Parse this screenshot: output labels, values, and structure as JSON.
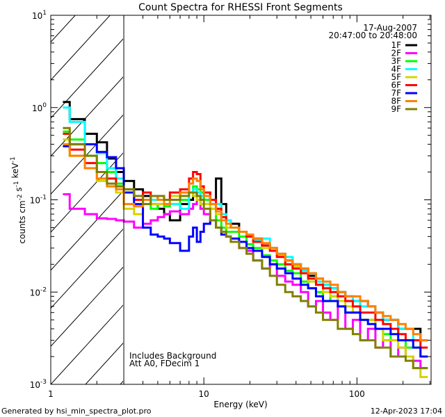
{
  "chart_data": {
    "type": "line",
    "title": "Count Spectra for RHESSI Front Segments",
    "xlabel": "Energy (keV)",
    "ylabel": {
      "text": "counts cm",
      "parts": [
        [
          "counts cm",
          "-2"
        ],
        [
          " s",
          "-1"
        ],
        [
          " keV",
          "-1"
        ]
      ]
    },
    "xscale": "log",
    "yscale": "log",
    "xlim": [
      1,
      305
    ],
    "ylim": [
      0.001,
      10
    ],
    "x_ticks": [
      {
        "value": 1,
        "label": "1"
      },
      {
        "value": 10,
        "label": "10"
      },
      {
        "value": 100,
        "label": "100"
      }
    ],
    "y_ticks": [
      {
        "value": 0.001,
        "base": "10",
        "exp": "-3"
      },
      {
        "value": 0.01,
        "base": "10",
        "exp": "-2"
      },
      {
        "value": 0.1,
        "base": "10",
        "exp": "-1"
      },
      {
        "value": 1,
        "base": "10",
        "exp": "0"
      },
      {
        "value": 10,
        "base": "10",
        "exp": "1"
      }
    ],
    "hatched_region_keV": [
      1,
      3
    ],
    "annotations": [
      "Includes Background",
      "Att A0, FDecim 1"
    ],
    "legend": {
      "placement": "top-right",
      "date": "17-Aug-2007",
      "time_range": "20:47:00 to 20:48:00"
    },
    "energy_edges_keV": [
      1.2,
      1.33,
      1.67,
      2,
      2.33,
      2.67,
      3,
      3.5,
      4,
      4.5,
      5,
      5.5,
      6,
      7,
      8,
      8.5,
      9,
      9.5,
      10,
      11,
      12,
      13,
      14,
      15,
      17,
      19,
      21,
      24,
      27,
      30,
      34,
      38,
      43,
      48,
      54,
      60,
      67,
      75,
      84,
      94,
      105,
      118,
      132,
      148,
      166,
      186,
      208,
      233,
      260,
      290
    ],
    "series": [
      {
        "name": "1F",
        "color": "#000000",
        "values": [
          1.15,
          0.75,
          0.52,
          0.42,
          0.28,
          0.2,
          0.16,
          0.13,
          0.11,
          0.09,
          0.08,
          0.07,
          0.06,
          0.09,
          0.1,
          0.12,
          0.11,
          0.1,
          0.12,
          0.1,
          0.17,
          0.09,
          0.06,
          0.055,
          0.045,
          0.04,
          0.038,
          0.032,
          0.03,
          0.026,
          0.022,
          0.02,
          0.018,
          0.015,
          0.014,
          0.012,
          0.011,
          0.01,
          0.009,
          0.008,
          0.008,
          0.007,
          0.006,
          0.005,
          0.005,
          0.004,
          0.004,
          0.004,
          0.003
        ]
      },
      {
        "name": "2F",
        "color": "#ff00ff",
        "values": [
          0.115,
          0.08,
          0.07,
          0.063,
          0.062,
          0.06,
          0.058,
          0.05,
          0.055,
          0.06,
          0.065,
          0.07,
          0.075,
          0.07,
          0.08,
          0.09,
          0.1,
          0.08,
          0.07,
          0.06,
          0.05,
          0.045,
          0.04,
          0.035,
          0.03,
          0.028,
          0.022,
          0.018,
          0.02,
          0.015,
          0.013,
          0.012,
          0.01,
          0.007,
          0.008,
          0.006,
          0.005,
          0.007,
          0.004,
          0.005,
          0.003,
          0.004,
          0.0025,
          0.003,
          0.002,
          0.0025,
          0.002,
          0.0018,
          0.0015
        ]
      },
      {
        "name": "3F",
        "color": "#00ff00",
        "values": [
          0.55,
          0.45,
          0.3,
          0.25,
          0.2,
          0.15,
          0.12,
          0.11,
          0.1,
          0.08,
          0.09,
          0.085,
          0.09,
          0.1,
          0.12,
          0.14,
          0.13,
          0.12,
          0.1,
          0.08,
          0.06,
          0.05,
          0.045,
          0.045,
          0.04,
          0.033,
          0.03,
          0.025,
          0.022,
          0.02,
          0.017,
          0.016,
          0.013,
          0.011,
          0.01,
          0.008,
          0.009,
          0.007,
          0.006,
          0.006,
          0.005,
          0.005,
          0.004,
          0.0035,
          0.003,
          0.003,
          0.0025,
          0.0025,
          0.002
        ]
      },
      {
        "name": "4F",
        "color": "#00ffff",
        "values": [
          1.0,
          0.7,
          0.4,
          0.32,
          0.22,
          0.17,
          0.13,
          0.1,
          0.09,
          0.1,
          0.11,
          0.1,
          0.09,
          0.08,
          0.12,
          0.13,
          0.12,
          0.11,
          0.11,
          0.1,
          0.09,
          0.07,
          0.06,
          0.05,
          0.045,
          0.04,
          0.036,
          0.038,
          0.03,
          0.026,
          0.024,
          0.02,
          0.017,
          0.016,
          0.013,
          0.012,
          0.011,
          0.01,
          0.009,
          0.008,
          0.007,
          0.007,
          0.006,
          0.005,
          0.005,
          0.004,
          0.004,
          0.003,
          0.003
        ]
      },
      {
        "name": "5F",
        "color": "#d4d400",
        "values": [
          0.45,
          0.3,
          0.22,
          0.16,
          0.14,
          0.12,
          0.08,
          0.07,
          0.1,
          0.09,
          0.09,
          0.1,
          0.11,
          0.11,
          0.12,
          0.11,
          0.1,
          0.09,
          0.09,
          0.08,
          0.07,
          0.06,
          0.05,
          0.05,
          0.045,
          0.04,
          0.035,
          0.03,
          0.03,
          0.025,
          0.02,
          0.019,
          0.016,
          0.013,
          0.012,
          0.01,
          0.009,
          0.008,
          0.007,
          0.006,
          0.005,
          0.005,
          0.004,
          0.003,
          0.003,
          0.0025,
          0.002,
          0.0015,
          0.0012
        ]
      },
      {
        "name": "6F",
        "color": "#ff0000",
        "values": [
          0.52,
          0.35,
          0.25,
          0.2,
          0.17,
          0.14,
          0.13,
          0.1,
          0.12,
          0.11,
          0.1,
          0.1,
          0.12,
          0.13,
          0.17,
          0.2,
          0.19,
          0.14,
          0.12,
          0.1,
          0.08,
          0.065,
          0.055,
          0.05,
          0.045,
          0.04,
          0.035,
          0.032,
          0.028,
          0.024,
          0.02,
          0.018,
          0.016,
          0.014,
          0.012,
          0.011,
          0.01,
          0.009,
          0.008,
          0.007,
          0.006,
          0.006,
          0.005,
          0.0045,
          0.004,
          0.0035,
          0.003,
          0.003,
          0.0025
        ]
      },
      {
        "name": "7F",
        "color": "#0000ff",
        "values": [
          0.38,
          0.4,
          0.4,
          0.33,
          0.29,
          0.22,
          0.12,
          0.09,
          0.05,
          0.042,
          0.04,
          0.038,
          0.034,
          0.028,
          0.04,
          0.05,
          0.035,
          0.045,
          0.055,
          0.06,
          0.05,
          0.042,
          0.04,
          0.038,
          0.035,
          0.03,
          0.028,
          0.024,
          0.02,
          0.018,
          0.016,
          0.014,
          0.012,
          0.011,
          0.009,
          0.008,
          0.008,
          0.007,
          0.006,
          0.006,
          0.005,
          0.0045,
          0.004,
          0.004,
          0.0035,
          0.003,
          0.003,
          0.0025,
          0.002
        ]
      },
      {
        "name": "8F",
        "color": "#ff8000",
        "values": [
          0.4,
          0.3,
          0.22,
          0.17,
          0.14,
          0.13,
          0.09,
          0.085,
          0.1,
          0.11,
          0.1,
          0.09,
          0.1,
          0.12,
          0.15,
          0.17,
          0.16,
          0.13,
          0.11,
          0.09,
          0.075,
          0.06,
          0.055,
          0.05,
          0.045,
          0.042,
          0.038,
          0.034,
          0.03,
          0.026,
          0.022,
          0.02,
          0.018,
          0.016,
          0.014,
          0.013,
          0.012,
          0.01,
          0.009,
          0.009,
          0.008,
          0.007,
          0.006,
          0.0055,
          0.005,
          0.0045,
          0.004,
          0.0035,
          0.003
        ]
      },
      {
        "name": "9F",
        "color": "#808000",
        "values": [
          0.6,
          0.4,
          0.3,
          0.2,
          0.15,
          0.14,
          0.13,
          0.11,
          0.09,
          0.11,
          0.11,
          0.1,
          0.1,
          0.11,
          0.12,
          0.12,
          0.11,
          0.1,
          0.08,
          0.06,
          0.05,
          0.045,
          0.04,
          0.035,
          0.03,
          0.026,
          0.022,
          0.018,
          0.015,
          0.012,
          0.01,
          0.009,
          0.008,
          0.007,
          0.006,
          0.005,
          0.005,
          0.004,
          0.004,
          0.0035,
          0.003,
          0.003,
          0.0025,
          0.0025,
          0.002,
          0.002,
          0.0018,
          0.0015,
          0.0015
        ]
      }
    ]
  },
  "footer": {
    "generated_by": "Generated by hsi_min_spectra_plot.pro",
    "timestamp": "12-Apr-2023 17:04"
  }
}
